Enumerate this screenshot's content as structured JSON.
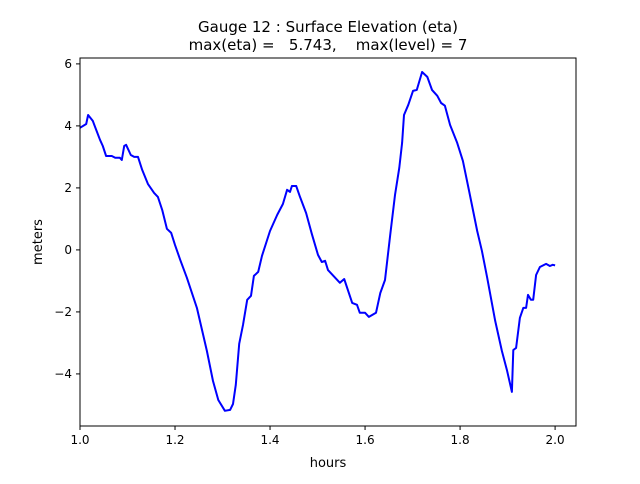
{
  "chart_data": {
    "type": "line",
    "title": "Gauge 12 : Surface Elevation (eta)",
    "subtitle": "max(eta) =   5.743,    max(level) = 7",
    "xlabel": "hours",
    "ylabel": "meters",
    "xlim": [
      1.0,
      2.044
    ],
    "ylim": [
      -5.68,
      6.19
    ],
    "xticks": [
      "1.0",
      "1.2",
      "1.4",
      "1.6",
      "1.8",
      "2.0"
    ],
    "yticks": [
      "-4",
      "-2",
      "0",
      "2",
      "4",
      "6"
    ],
    "grid": false,
    "series": [
      {
        "color": "#0000ff",
        "x": [
          1.0,
          1.013,
          1.017,
          1.027,
          1.034,
          1.042,
          1.048,
          1.055,
          1.067,
          1.074,
          1.084,
          1.088,
          1.093,
          1.097,
          1.107,
          1.114,
          1.122,
          1.131,
          1.143,
          1.156,
          1.164,
          1.173,
          1.183,
          1.192,
          1.2,
          1.211,
          1.225,
          1.246,
          1.267,
          1.28,
          1.291,
          1.305,
          1.316,
          1.322,
          1.328,
          1.335,
          1.343,
          1.352,
          1.36,
          1.366,
          1.375,
          1.383,
          1.4,
          1.415,
          1.427,
          1.436,
          1.442,
          1.446,
          1.455,
          1.463,
          1.476,
          1.488,
          1.501,
          1.509,
          1.516,
          1.522,
          1.547,
          1.556,
          1.573,
          1.583,
          1.589,
          1.6,
          1.608,
          1.623,
          1.632,
          1.642,
          1.653,
          1.663,
          1.672,
          1.678,
          1.682,
          1.691,
          1.701,
          1.709,
          1.72,
          1.731,
          1.741,
          1.752,
          1.76,
          1.768,
          1.779,
          1.794,
          1.806,
          1.819,
          1.836,
          1.846,
          1.857,
          1.874,
          1.888,
          1.899,
          1.909,
          1.912,
          1.918,
          1.926,
          1.933,
          1.939,
          1.943,
          1.949,
          1.954,
          1.96,
          1.968,
          1.981,
          1.989,
          1.995,
          2.0
        ],
        "y": [
          3.94,
          4.06,
          4.35,
          4.16,
          3.87,
          3.55,
          3.35,
          3.03,
          3.03,
          2.97,
          2.97,
          2.9,
          3.35,
          3.39,
          3.06,
          3.0,
          3.0,
          2.58,
          2.13,
          1.84,
          1.71,
          1.29,
          0.68,
          0.55,
          0.16,
          -0.32,
          -0.9,
          -1.87,
          -3.26,
          -4.23,
          -4.84,
          -5.19,
          -5.16,
          -4.97,
          -4.35,
          -3.03,
          -2.42,
          -1.61,
          -1.48,
          -0.84,
          -0.71,
          -0.19,
          0.61,
          1.13,
          1.48,
          1.94,
          1.87,
          2.06,
          2.06,
          1.71,
          1.19,
          0.52,
          -0.16,
          -0.39,
          -0.35,
          -0.65,
          -1.06,
          -0.94,
          -1.71,
          -1.77,
          -2.03,
          -2.03,
          -2.16,
          -2.03,
          -1.39,
          -0.97,
          0.48,
          1.77,
          2.65,
          3.45,
          4.35,
          4.68,
          5.13,
          5.16,
          5.74,
          5.58,
          5.16,
          4.97,
          4.74,
          4.65,
          4.03,
          3.45,
          2.87,
          1.9,
          0.61,
          -0.03,
          -0.9,
          -2.29,
          -3.26,
          -3.9,
          -4.58,
          -3.23,
          -3.16,
          -2.19,
          -1.87,
          -1.87,
          -1.45,
          -1.61,
          -1.61,
          -0.81,
          -0.55,
          -0.45,
          -0.52,
          -0.48,
          -0.5
        ]
      }
    ]
  }
}
